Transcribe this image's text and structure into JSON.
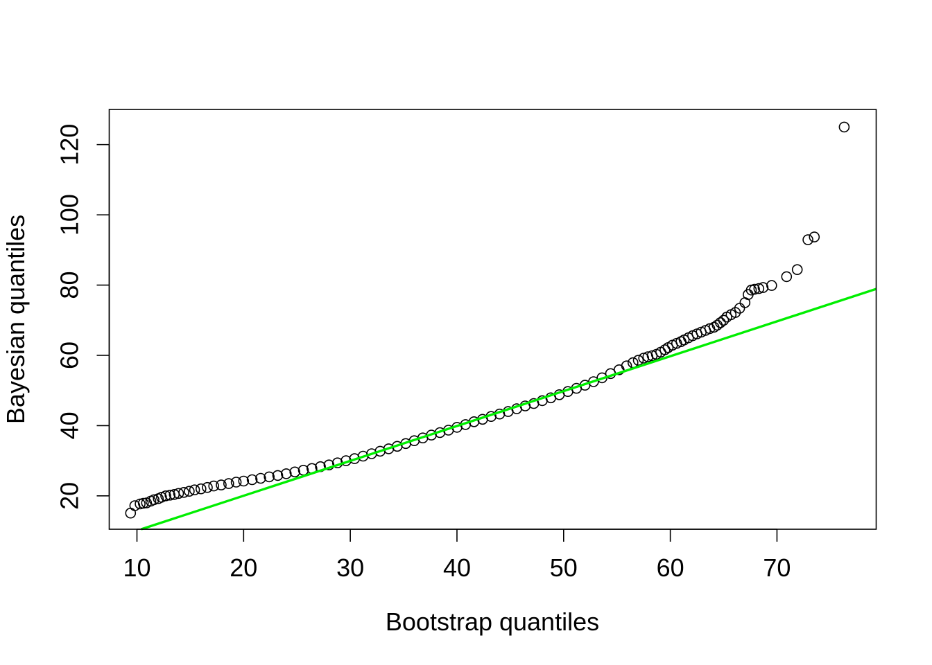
{
  "chart_data": {
    "type": "scatter",
    "title": "",
    "xlabel": "Bootstrap quantiles",
    "ylabel": "Bayesian quantiles",
    "xlim": [
      7.4,
      79.3
    ],
    "ylim": [
      10.5,
      130
    ],
    "grid": false,
    "x_ticks": [
      10,
      20,
      30,
      40,
      50,
      60,
      70
    ],
    "x_tick_labels": [
      "10",
      "20",
      "30",
      "40",
      "50",
      "60",
      "70"
    ],
    "y_ticks": [
      20,
      40,
      60,
      80,
      100,
      120
    ],
    "y_tick_labels": [
      "20",
      "40",
      "60",
      "80",
      "100",
      "120"
    ],
    "reference_line": {
      "x": [
        10.4,
        79.3
      ],
      "y": [
        10.5,
        78.9
      ],
      "color": "#00ee00"
    },
    "point_style": "open-circle",
    "point_color": "#000000",
    "x": [
      9.4,
      9.8,
      10.3,
      10.6,
      10.9,
      11.3,
      11.6,
      12.0,
      12.3,
      12.7,
      13.1,
      13.5,
      13.9,
      14.4,
      14.9,
      15.4,
      16.0,
      16.6,
      17.2,
      17.9,
      18.6,
      19.3,
      20.0,
      20.8,
      21.6,
      22.4,
      23.2,
      24.0,
      24.8,
      25.6,
      26.4,
      27.2,
      28.0,
      28.8,
      29.6,
      30.4,
      31.2,
      32.0,
      32.8,
      33.6,
      34.4,
      35.2,
      36.0,
      36.8,
      37.6,
      38.4,
      39.2,
      40.0,
      40.8,
      41.6,
      42.4,
      43.2,
      44.0,
      44.8,
      45.6,
      46.4,
      47.2,
      48.0,
      48.8,
      49.6,
      50.4,
      51.2,
      52.0,
      52.8,
      53.6,
      54.4,
      55.2,
      55.9,
      56.5,
      57.0,
      57.5,
      57.9,
      58.3,
      58.7,
      59.1,
      59.5,
      59.8,
      60.2,
      60.6,
      61.0,
      61.3,
      61.7,
      62.1,
      62.5,
      62.9,
      63.3,
      63.7,
      64.1,
      64.4,
      64.7,
      65.0,
      65.3,
      65.7,
      66.1,
      66.5,
      67.0,
      67.3,
      67.6,
      67.9,
      68.3,
      68.7,
      69.5,
      70.9,
      71.9,
      72.9,
      73.5,
      76.3
    ],
    "y": [
      15.1,
      17.2,
      17.7,
      17.9,
      18.0,
      18.5,
      18.9,
      19.2,
      19.6,
      20.0,
      20.2,
      20.4,
      20.7,
      21.0,
      21.3,
      21.7,
      22.0,
      22.4,
      22.8,
      23.1,
      23.5,
      23.9,
      24.2,
      24.6,
      25.0,
      25.4,
      25.8,
      26.3,
      26.8,
      27.3,
      27.8,
      28.3,
      28.8,
      29.4,
      30.0,
      30.6,
      31.3,
      32.0,
      32.7,
      33.4,
      34.1,
      34.9,
      35.7,
      36.5,
      37.3,
      38.0,
      38.7,
      39.5,
      40.3,
      41.1,
      41.8,
      42.6,
      43.3,
      44.0,
      44.8,
      45.6,
      46.3,
      47.1,
      47.9,
      48.8,
      49.7,
      50.6,
      51.5,
      52.5,
      53.6,
      54.8,
      55.9,
      57.0,
      57.9,
      58.6,
      59.2,
      59.6,
      59.9,
      60.3,
      60.9,
      61.6,
      62.2,
      62.9,
      63.4,
      63.9,
      64.4,
      65.0,
      65.6,
      66.1,
      66.6,
      67.1,
      67.6,
      68.0,
      68.6,
      69.3,
      70.0,
      70.9,
      71.6,
      72.2,
      73.4,
      75.0,
      77.3,
      78.6,
      78.8,
      79.0,
      79.3,
      79.9,
      82.4,
      84.4,
      92.9,
      93.7,
      125.0
    ]
  }
}
